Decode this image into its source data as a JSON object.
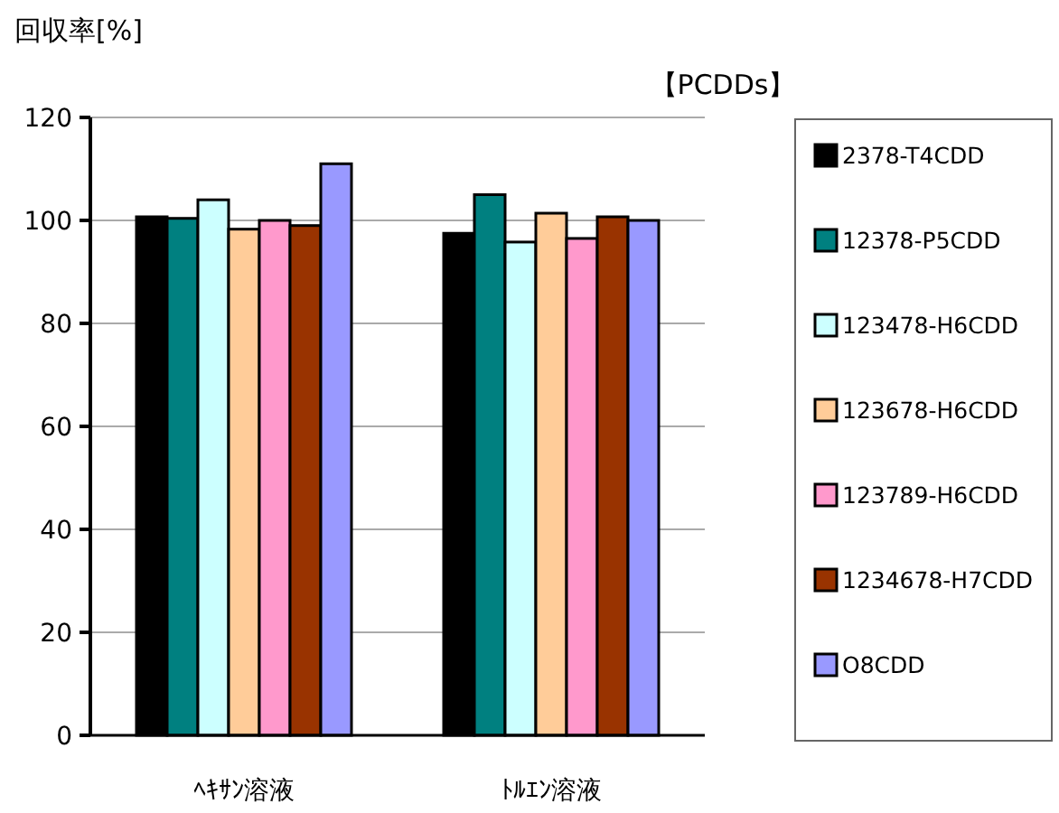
{
  "chart_data": {
    "type": "bar",
    "title": "【PCDDs】",
    "ylabel": "回収率[%]",
    "categories": [
      "ﾍｷｻﾝ溶液",
      "ﾄﾙｴﾝ溶液"
    ],
    "series": [
      {
        "name": "2378-T4CDD",
        "color": "#000000",
        "values": [
          100.7,
          97.5
        ]
      },
      {
        "name": "12378-P5CDD",
        "color": "#008080",
        "values": [
          100.4,
          105
        ]
      },
      {
        "name": "123478-H6CDD",
        "color": "#ccffff",
        "values": [
          104,
          95.8
        ]
      },
      {
        "name": "123678-H6CDD",
        "color": "#ffcc99",
        "values": [
          98.3,
          101.4
        ]
      },
      {
        "name": "123789-H6CDD",
        "color": "#ff99cc",
        "values": [
          100,
          96.5
        ]
      },
      {
        "name": "1234678-H7CDD",
        "color": "#993300",
        "values": [
          99,
          100.7
        ]
      },
      {
        "name": "O8CDD",
        "color": "#9999ff",
        "values": [
          111,
          100
        ]
      }
    ],
    "ylim": [
      0,
      120
    ],
    "yticks": [
      0,
      20,
      40,
      60,
      80,
      100,
      120
    ],
    "grid": "y",
    "legend": "right"
  }
}
